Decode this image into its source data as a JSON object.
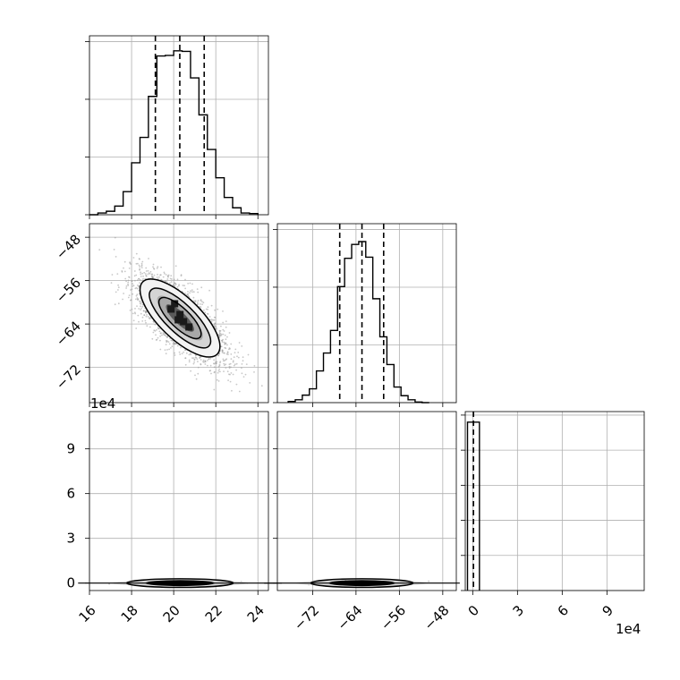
{
  "chart_data": {
    "type": "corner",
    "grid": true,
    "panels": {
      "hist_p1": {
        "type": "histogram",
        "xlim": [
          16.0,
          24.5
        ],
        "yticks": [
          0,
          1,
          2,
          3
        ],
        "ylim": [
          0,
          3.1
        ],
        "bins": [
          [
            16.0,
            16.4,
            0.0
          ],
          [
            16.4,
            16.8,
            0.03
          ],
          [
            16.8,
            17.2,
            0.06
          ],
          [
            17.2,
            17.6,
            0.15
          ],
          [
            17.6,
            18.0,
            0.4
          ],
          [
            18.0,
            18.4,
            0.9
          ],
          [
            18.4,
            18.8,
            1.34
          ],
          [
            18.8,
            19.2,
            2.05
          ],
          [
            19.2,
            19.6,
            2.75
          ],
          [
            19.6,
            20.0,
            2.76
          ],
          [
            20.0,
            20.4,
            2.84
          ],
          [
            20.4,
            20.8,
            2.83
          ],
          [
            20.8,
            21.2,
            2.37
          ],
          [
            21.2,
            21.6,
            1.73
          ],
          [
            21.6,
            22.0,
            1.13
          ],
          [
            22.0,
            22.4,
            0.64
          ],
          [
            22.4,
            22.8,
            0.3
          ],
          [
            22.8,
            23.2,
            0.12
          ],
          [
            23.2,
            23.6,
            0.03
          ],
          [
            23.6,
            24.0,
            0.02
          ]
        ],
        "quantiles": [
          19.13,
          20.29,
          21.45
        ]
      },
      "hist_p2": {
        "type": "histogram",
        "xlim": [
          -78.5,
          -45.5
        ],
        "yticks": [
          0,
          1,
          2,
          3
        ],
        "ylim": [
          0,
          3.1
        ],
        "bins": [
          [
            -76.5,
            -75.2,
            0.02
          ],
          [
            -75.2,
            -73.9,
            0.05
          ],
          [
            -73.9,
            -72.6,
            0.13
          ],
          [
            -72.6,
            -71.3,
            0.24
          ],
          [
            -71.3,
            -70.0,
            0.55
          ],
          [
            -70.0,
            -68.7,
            0.86
          ],
          [
            -68.7,
            -67.4,
            1.25
          ],
          [
            -67.4,
            -66.1,
            2.01
          ],
          [
            -66.1,
            -64.8,
            2.5
          ],
          [
            -64.8,
            -63.5,
            2.74
          ],
          [
            -63.5,
            -62.2,
            2.79
          ],
          [
            -62.2,
            -60.9,
            2.52
          ],
          [
            -60.9,
            -59.6,
            1.8
          ],
          [
            -59.6,
            -58.3,
            1.14
          ],
          [
            -58.3,
            -57.0,
            0.66
          ],
          [
            -57.0,
            -55.7,
            0.27
          ],
          [
            -55.7,
            -54.4,
            0.12
          ],
          [
            -54.4,
            -53.1,
            0.05
          ],
          [
            -53.1,
            -51.8,
            0.01
          ],
          [
            -51.8,
            -50.5,
            0.0
          ]
        ],
        "quantiles": [
          -67.0,
          -62.9,
          -58.9
        ]
      },
      "hist_p3": {
        "type": "histogram",
        "xlim": [
          -0.5,
          11.5
        ],
        "yticks": [
          0,
          1,
          2,
          3,
          4,
          5
        ],
        "ylim": [
          0,
          5.1
        ],
        "bins": [
          [
            -0.35,
            0.05,
            4.8
          ],
          [
            0.05,
            0.45,
            4.8
          ]
        ],
        "quantiles": [
          0.05
        ]
      },
      "scatter_p1_p2": {
        "type": "2d-density",
        "xlim": [
          16.0,
          24.5
        ],
        "ylim": [
          -78.5,
          -45.5
        ],
        "center": [
          20.3,
          -62.9
        ],
        "sigma": [
          1.1,
          4.1
        ],
        "correlation": -0.75
      },
      "scatter_p1_p3": {
        "type": "2d-density",
        "xlim": [
          16.0,
          24.5
        ],
        "ylim": [
          -0.5,
          11.5
        ]
      },
      "scatter_p2_p3": {
        "type": "2d-density",
        "xlim": [
          -78.5,
          -45.5
        ],
        "ylim": [
          -0.5,
          11.5
        ]
      }
    },
    "axes": {
      "p1": {
        "ticks": [
          16,
          18,
          20,
          22,
          24
        ],
        "labels": [
          "16",
          "18",
          "20",
          "22",
          "24"
        ]
      },
      "p2": {
        "ticks": [
          -72,
          -64,
          -56,
          -48
        ],
        "labels": [
          "−72",
          "−64",
          "−56",
          "−48"
        ]
      },
      "p3": {
        "ticks": [
          0,
          3,
          6,
          9
        ],
        "labels": [
          "0",
          "3",
          "6",
          "9"
        ],
        "multiplier": "1e4"
      }
    }
  }
}
